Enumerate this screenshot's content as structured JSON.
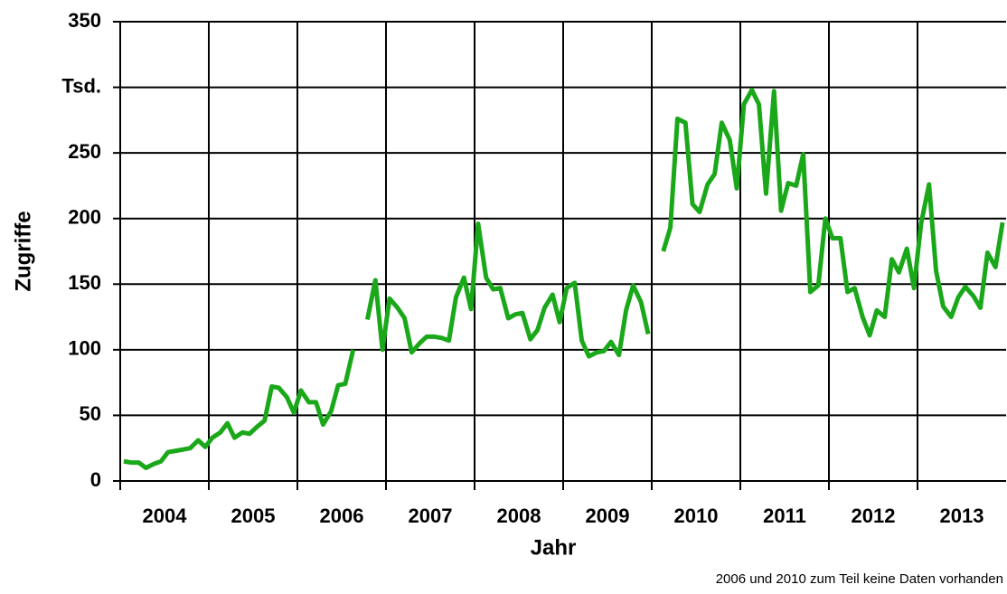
{
  "chart_data": {
    "type": "line",
    "x_label": "Jahr",
    "y_label": "Zugriffe",
    "annotation": "2006 und 2010 zum Teil keine Daten vorhanden",
    "color": "#1aa81a",
    "xlim": [
      2004,
      2014
    ],
    "ylim": [
      0,
      350
    ],
    "yticks": [
      0,
      50,
      100,
      150,
      200,
      250,
      {
        "value": 300,
        "label": "Tsd."
      },
      350
    ],
    "xticks": [
      {
        "value": 2004.5,
        "label": "2004"
      },
      {
        "value": 2005.5,
        "label": "2005"
      },
      {
        "value": 2006.5,
        "label": "2006"
      },
      {
        "value": 2007.5,
        "label": "2007"
      },
      {
        "value": 2008.5,
        "label": "2008"
      },
      {
        "value": 2009.5,
        "label": "2009"
      },
      {
        "value": 2010.5,
        "label": "2010"
      },
      {
        "value": 2011.5,
        "label": "2011"
      },
      {
        "value": 2012.5,
        "label": "2012"
      },
      {
        "value": 2013.5,
        "label": "2013"
      }
    ],
    "xgrid": [
      2005,
      2006,
      2007,
      2008,
      2009,
      2010,
      2011,
      2012,
      2013
    ],
    "grid": true,
    "x": [
      2004.04,
      2004.13,
      2004.21,
      2004.29,
      2004.38,
      2004.46,
      2004.54,
      2004.63,
      2004.71,
      2004.79,
      2004.88,
      2004.96,
      2005.04,
      2005.13,
      2005.21,
      2005.29,
      2005.38,
      2005.46,
      2005.54,
      2005.63,
      2005.71,
      2005.79,
      2005.88,
      2005.96,
      2006.04,
      2006.13,
      2006.21,
      2006.29,
      2006.38,
      2006.46,
      2006.54,
      2006.63,
      2006.71,
      2006.79,
      2006.88,
      2006.96,
      2007.04,
      2007.13,
      2007.21,
      2007.29,
      2007.38,
      2007.46,
      2007.54,
      2007.63,
      2007.71,
      2007.79,
      2007.88,
      2007.96,
      2008.04,
      2008.13,
      2008.21,
      2008.29,
      2008.38,
      2008.46,
      2008.54,
      2008.63,
      2008.71,
      2008.79,
      2008.88,
      2008.96,
      2009.04,
      2009.13,
      2009.21,
      2009.29,
      2009.38,
      2009.46,
      2009.54,
      2009.63,
      2009.71,
      2009.79,
      2009.88,
      2009.96,
      2010.04,
      2010.13,
      2010.21,
      2010.29,
      2010.38,
      2010.46,
      2010.54,
      2010.63,
      2010.71,
      2010.79,
      2010.88,
      2010.96,
      2011.04,
      2011.13,
      2011.21,
      2011.29,
      2011.38,
      2011.46,
      2011.54,
      2011.63,
      2011.71,
      2011.79,
      2011.88,
      2011.96,
      2012.04,
      2012.13,
      2012.21,
      2012.29,
      2012.38,
      2012.46,
      2012.54,
      2012.63,
      2012.71,
      2012.79,
      2012.88,
      2012.96,
      2013.04,
      2013.13,
      2013.21,
      2013.29,
      2013.38,
      2013.46,
      2013.54,
      2013.63,
      2013.71,
      2013.79,
      2013.88,
      2013.96
    ],
    "values": [
      15,
      14,
      14,
      10,
      13,
      15,
      22,
      23,
      24,
      25,
      31,
      26,
      33,
      37,
      44,
      33,
      37,
      36,
      41,
      46,
      72,
      71,
      64,
      52,
      69,
      60,
      60,
      43,
      53,
      73,
      74,
      100,
      null,
      123,
      153,
      100,
      139,
      132,
      124,
      98,
      105,
      110,
      110,
      109,
      107,
      140,
      155,
      131,
      196,
      155,
      146,
      147,
      124,
      127,
      128,
      108,
      115,
      132,
      142,
      121,
      147,
      151,
      107,
      95,
      98,
      99,
      106,
      96,
      130,
      149,
      136,
      112,
      null,
      175,
      193,
      276,
      273,
      211,
      205,
      226,
      234,
      273,
      260,
      223,
      287,
      298,
      287,
      219,
      297,
      206,
      227,
      225,
      249,
      144,
      149,
      200,
      185,
      185,
      144,
      147,
      125,
      111,
      130,
      125,
      169,
      159,
      177,
      147,
      196,
      226,
      160,
      133,
      125,
      140,
      148,
      141,
      132,
      174,
      163,
      197
    ]
  }
}
